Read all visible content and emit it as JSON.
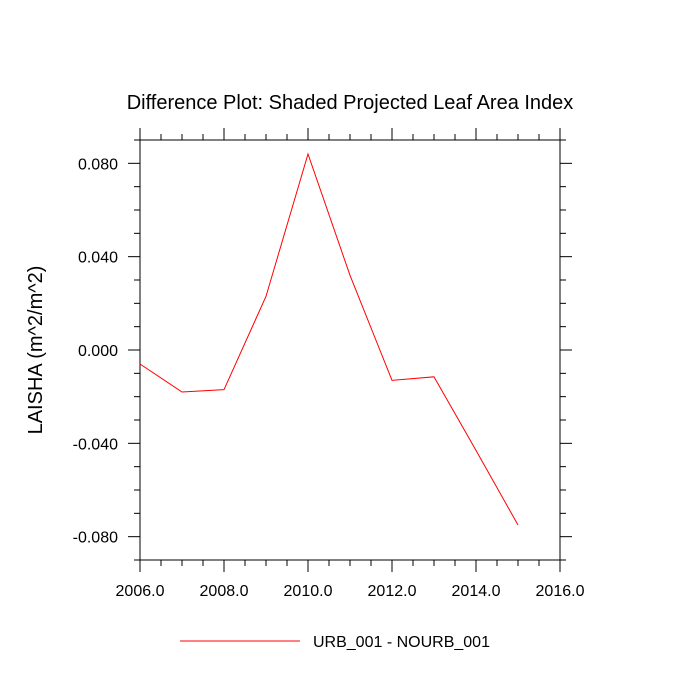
{
  "chart_data": {
    "type": "line",
    "title": "Difference Plot: Shaded Projected Leaf Area Index",
    "xlabel": "",
    "ylabel": "LAISHA  (m^2/m^2)",
    "xlim": [
      2006,
      2016
    ],
    "ylim": [
      -0.09,
      0.09
    ],
    "x_ticks": [
      2006,
      2008,
      2010,
      2012,
      2014,
      2016
    ],
    "x_tick_labels": [
      "2006.0",
      "2008.0",
      "2010.0",
      "2012.0",
      "2014.0",
      "2016.0"
    ],
    "x_minor_step": 0.5,
    "y_ticks": [
      -0.08,
      -0.04,
      0.0,
      0.04,
      0.08
    ],
    "y_tick_labels": [
      "-0.080",
      "-0.040",
      "0.000",
      "0.040",
      "0.080"
    ],
    "y_minor_step": 0.01,
    "grid": false,
    "legend_position": "bottom-center",
    "series": [
      {
        "name": "URB_001 - NOURB_001",
        "color": "#ff0000",
        "x": [
          2006,
          2007,
          2008,
          2009,
          2010,
          2011,
          2012,
          2013,
          2014,
          2015
        ],
        "values": [
          -0.006,
          -0.018,
          -0.017,
          0.023,
          0.084,
          0.032,
          -0.013,
          -0.0115,
          -0.043,
          -0.075
        ]
      }
    ]
  }
}
